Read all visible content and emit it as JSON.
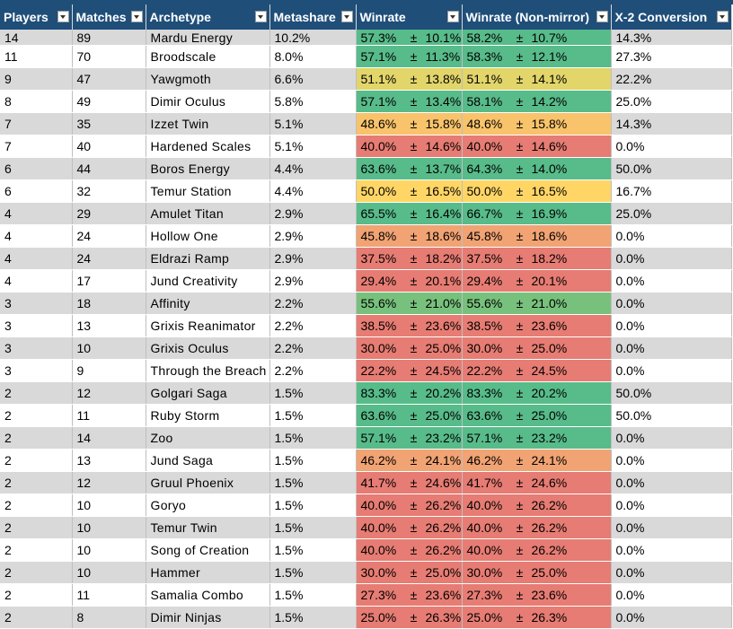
{
  "header": {
    "columns": [
      {
        "key": "players",
        "label": "Players"
      },
      {
        "key": "matches",
        "label": "Matches"
      },
      {
        "key": "archetype",
        "label": "Archetype"
      },
      {
        "key": "metashare",
        "label": "Metashare"
      },
      {
        "key": "winrate",
        "label": "Winrate"
      },
      {
        "key": "winrate_nm",
        "label": "Winrate (Non-mirror)"
      },
      {
        "key": "conversion",
        "label": "X-2 Conversion"
      }
    ],
    "filter_icon": "dropdown-arrow-icon"
  },
  "colors": {
    "header_bg": "#1f4e79",
    "green": "#57bb8a",
    "light_green": "#77c17c",
    "yellow": "#ffd666",
    "orange": "#f6b26b",
    "red": "#e67c73"
  },
  "rows": [
    {
      "players": "14",
      "matches": "89",
      "archetype": "Mardu Energy",
      "metashare": "10.2%",
      "wr": "57.3%",
      "wr_ci": "10.1%",
      "wrnm": "58.2%",
      "wrnm_ci": "10.7%",
      "conv": "14.3%",
      "wr_color": "#57bb8a",
      "wrnm_color": "#57bb8a"
    },
    {
      "players": "11",
      "matches": "70",
      "archetype": "Broodscale",
      "metashare": "8.0%",
      "wr": "57.1%",
      "wr_ci": "11.3%",
      "wrnm": "58.3%",
      "wrnm_ci": "12.1%",
      "conv": "27.3%",
      "wr_color": "#57bb8a",
      "wrnm_color": "#57bb8a"
    },
    {
      "players": "9",
      "matches": "47",
      "archetype": "Yawgmoth",
      "metashare": "6.6%",
      "wr": "51.1%",
      "wr_ci": "13.8%",
      "wrnm": "51.1%",
      "wrnm_ci": "14.1%",
      "conv": "22.2%",
      "wr_color": "#e2d56a",
      "wrnm_color": "#e2d56a"
    },
    {
      "players": "8",
      "matches": "49",
      "archetype": "Dimir Oculus",
      "metashare": "5.8%",
      "wr": "57.1%",
      "wr_ci": "13.4%",
      "wrnm": "58.1%",
      "wrnm_ci": "14.2%",
      "conv": "25.0%",
      "wr_color": "#57bb8a",
      "wrnm_color": "#57bb8a"
    },
    {
      "players": "7",
      "matches": "35",
      "archetype": "Izzet Twin",
      "metashare": "5.1%",
      "wr": "48.6%",
      "wr_ci": "15.8%",
      "wrnm": "48.6%",
      "wrnm_ci": "15.8%",
      "conv": "14.3%",
      "wr_color": "#f8c36b",
      "wrnm_color": "#f8c36b"
    },
    {
      "players": "7",
      "matches": "40",
      "archetype": "Hardened Scales",
      "metashare": "5.1%",
      "wr": "40.0%",
      "wr_ci": "14.6%",
      "wrnm": "40.0%",
      "wrnm_ci": "14.6%",
      "conv": "0.0%",
      "wr_color": "#e67c73",
      "wrnm_color": "#e67c73"
    },
    {
      "players": "6",
      "matches": "44",
      "archetype": "Boros Energy",
      "metashare": "4.4%",
      "wr": "63.6%",
      "wr_ci": "13.7%",
      "wrnm": "64.3%",
      "wrnm_ci": "14.0%",
      "conv": "50.0%",
      "wr_color": "#57bb8a",
      "wrnm_color": "#57bb8a"
    },
    {
      "players": "6",
      "matches": "32",
      "archetype": "Temur Station",
      "metashare": "4.4%",
      "wr": "50.0%",
      "wr_ci": "16.5%",
      "wrnm": "50.0%",
      "wrnm_ci": "16.5%",
      "conv": "16.7%",
      "wr_color": "#ffd666",
      "wrnm_color": "#ffd666"
    },
    {
      "players": "4",
      "matches": "29",
      "archetype": "Amulet Titan",
      "metashare": "2.9%",
      "wr": "65.5%",
      "wr_ci": "16.4%",
      "wrnm": "66.7%",
      "wrnm_ci": "16.9%",
      "conv": "25.0%",
      "wr_color": "#57bb8a",
      "wrnm_color": "#57bb8a"
    },
    {
      "players": "4",
      "matches": "24",
      "archetype": "Hollow One",
      "metashare": "2.9%",
      "wr": "45.8%",
      "wr_ci": "18.6%",
      "wrnm": "45.8%",
      "wrnm_ci": "18.6%",
      "conv": "0.0%",
      "wr_color": "#f1a373",
      "wrnm_color": "#f1a373"
    },
    {
      "players": "4",
      "matches": "24",
      "archetype": "Eldrazi Ramp",
      "metashare": "2.9%",
      "wr": "37.5%",
      "wr_ci": "18.2%",
      "wrnm": "37.5%",
      "wrnm_ci": "18.2%",
      "conv": "0.0%",
      "wr_color": "#e67c73",
      "wrnm_color": "#e67c73"
    },
    {
      "players": "4",
      "matches": "17",
      "archetype": "Jund Creativity",
      "metashare": "2.9%",
      "wr": "29.4%",
      "wr_ci": "20.1%",
      "wrnm": "29.4%",
      "wrnm_ci": "20.1%",
      "conv": "0.0%",
      "wr_color": "#e67c73",
      "wrnm_color": "#e67c73"
    },
    {
      "players": "3",
      "matches": "18",
      "archetype": "Affinity",
      "metashare": "2.2%",
      "wr": "55.6%",
      "wr_ci": "21.0%",
      "wrnm": "55.6%",
      "wrnm_ci": "21.0%",
      "conv": "0.0%",
      "wr_color": "#77c17c",
      "wrnm_color": "#77c17c"
    },
    {
      "players": "3",
      "matches": "13",
      "archetype": "Grixis Reanimator",
      "metashare": "2.2%",
      "wr": "38.5%",
      "wr_ci": "23.6%",
      "wrnm": "38.5%",
      "wrnm_ci": "23.6%",
      "conv": "0.0%",
      "wr_color": "#e67c73",
      "wrnm_color": "#e67c73"
    },
    {
      "players": "3",
      "matches": "10",
      "archetype": "Grixis Oculus",
      "metashare": "2.2%",
      "wr": "30.0%",
      "wr_ci": "25.0%",
      "wrnm": "30.0%",
      "wrnm_ci": "25.0%",
      "conv": "0.0%",
      "wr_color": "#e67c73",
      "wrnm_color": "#e67c73"
    },
    {
      "players": "3",
      "matches": "9",
      "archetype": "Through the Breach",
      "metashare": "2.2%",
      "wr": "22.2%",
      "wr_ci": "24.5%",
      "wrnm": "22.2%",
      "wrnm_ci": "24.5%",
      "conv": "0.0%",
      "wr_color": "#e67c73",
      "wrnm_color": "#e67c73"
    },
    {
      "players": "2",
      "matches": "12",
      "archetype": "Golgari Saga",
      "metashare": "1.5%",
      "wr": "83.3%",
      "wr_ci": "20.2%",
      "wrnm": "83.3%",
      "wrnm_ci": "20.2%",
      "conv": "50.0%",
      "wr_color": "#57bb8a",
      "wrnm_color": "#57bb8a"
    },
    {
      "players": "2",
      "matches": "11",
      "archetype": "Ruby Storm",
      "metashare": "1.5%",
      "wr": "63.6%",
      "wr_ci": "25.0%",
      "wrnm": "63.6%",
      "wrnm_ci": "25.0%",
      "conv": "50.0%",
      "wr_color": "#57bb8a",
      "wrnm_color": "#57bb8a"
    },
    {
      "players": "2",
      "matches": "14",
      "archetype": "Zoo",
      "metashare": "1.5%",
      "wr": "57.1%",
      "wr_ci": "23.2%",
      "wrnm": "57.1%",
      "wrnm_ci": "23.2%",
      "conv": "0.0%",
      "wr_color": "#57bb8a",
      "wrnm_color": "#57bb8a"
    },
    {
      "players": "2",
      "matches": "13",
      "archetype": "Jund Saga",
      "metashare": "1.5%",
      "wr": "46.2%",
      "wr_ci": "24.1%",
      "wrnm": "46.2%",
      "wrnm_ci": "24.1%",
      "conv": "0.0%",
      "wr_color": "#f1a373",
      "wrnm_color": "#f1a373"
    },
    {
      "players": "2",
      "matches": "12",
      "archetype": "Gruul Phoenix",
      "metashare": "1.5%",
      "wr": "41.7%",
      "wr_ci": "24.6%",
      "wrnm": "41.7%",
      "wrnm_ci": "24.6%",
      "conv": "0.0%",
      "wr_color": "#e67c73",
      "wrnm_color": "#e67c73"
    },
    {
      "players": "2",
      "matches": "10",
      "archetype": "Goryo",
      "metashare": "1.5%",
      "wr": "40.0%",
      "wr_ci": "26.2%",
      "wrnm": "40.0%",
      "wrnm_ci": "26.2%",
      "conv": "0.0%",
      "wr_color": "#e67c73",
      "wrnm_color": "#e67c73"
    },
    {
      "players": "2",
      "matches": "10",
      "archetype": "Temur Twin",
      "metashare": "1.5%",
      "wr": "40.0%",
      "wr_ci": "26.2%",
      "wrnm": "40.0%",
      "wrnm_ci": "26.2%",
      "conv": "0.0%",
      "wr_color": "#e67c73",
      "wrnm_color": "#e67c73"
    },
    {
      "players": "2",
      "matches": "10",
      "archetype": "Song of Creation",
      "metashare": "1.5%",
      "wr": "40.0%",
      "wr_ci": "26.2%",
      "wrnm": "40.0%",
      "wrnm_ci": "26.2%",
      "conv": "0.0%",
      "wr_color": "#e67c73",
      "wrnm_color": "#e67c73"
    },
    {
      "players": "2",
      "matches": "10",
      "archetype": "Hammer",
      "metashare": "1.5%",
      "wr": "30.0%",
      "wr_ci": "25.0%",
      "wrnm": "30.0%",
      "wrnm_ci": "25.0%",
      "conv": "0.0%",
      "wr_color": "#e67c73",
      "wrnm_color": "#e67c73"
    },
    {
      "players": "2",
      "matches": "11",
      "archetype": "Samalia Combo",
      "metashare": "1.5%",
      "wr": "27.3%",
      "wr_ci": "23.6%",
      "wrnm": "27.3%",
      "wrnm_ci": "23.6%",
      "conv": "0.0%",
      "wr_color": "#e67c73",
      "wrnm_color": "#e67c73"
    },
    {
      "players": "2",
      "matches": "8",
      "archetype": "Dimir Ninjas",
      "metashare": "1.5%",
      "wr": "25.0%",
      "wr_ci": "26.3%",
      "wrnm": "25.0%",
      "wrnm_ci": "26.3%",
      "conv": "0.0%",
      "wr_color": "#e67c73",
      "wrnm_color": "#e67c73"
    }
  ],
  "plus_minus": "±"
}
